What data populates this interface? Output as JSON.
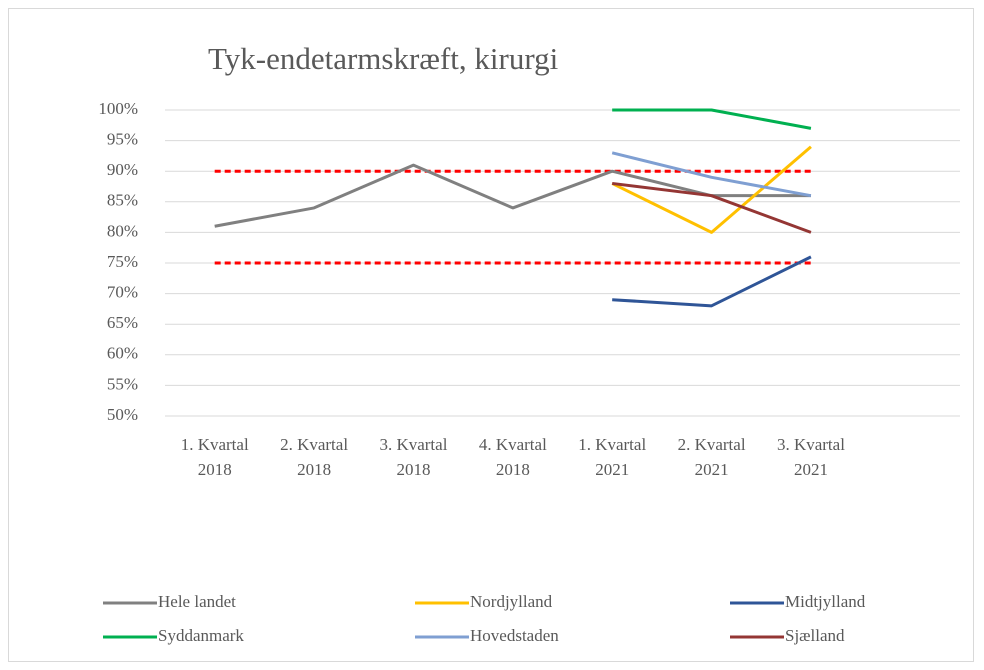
{
  "chart_data": {
    "type": "line",
    "title": "Tyk-endetarmskræft, kirurgi",
    "categories": [
      "1. Kvartal 2018",
      "2. Kvartal 2018",
      "3. Kvartal 2018",
      "4. Kvartal 2018",
      "1. Kvartal 2021",
      "2. Kvartal 2021",
      "3. Kvartal 2021",
      null
    ],
    "series": [
      {
        "name": "Hele landet",
        "color": "#808080",
        "values": [
          81,
          84,
          91,
          84,
          90,
          86,
          86,
          null
        ]
      },
      {
        "name": "Nordjylland",
        "color": "#ffc000",
        "values": [
          null,
          null,
          null,
          null,
          88,
          80,
          94,
          null
        ]
      },
      {
        "name": "Midtjylland",
        "color": "#2f5597",
        "values": [
          null,
          null,
          null,
          null,
          69,
          68,
          76,
          null
        ]
      },
      {
        "name": "Syddanmark",
        "color": "#00b050",
        "values": [
          null,
          null,
          null,
          null,
          100,
          100,
          97,
          null
        ]
      },
      {
        "name": "Hovedstaden",
        "color": "#7f9fd2",
        "values": [
          null,
          null,
          null,
          null,
          93,
          89,
          86,
          null
        ]
      },
      {
        "name": "Sjælland",
        "color": "#943634",
        "values": [
          null,
          null,
          null,
          null,
          88,
          86,
          80,
          null
        ]
      }
    ],
    "reference_lines": [
      {
        "color": "#ff0000",
        "dashed": true,
        "values": [
          90,
          90,
          90,
          90,
          90,
          90,
          90,
          null
        ]
      },
      {
        "color": "#ff0000",
        "dashed": true,
        "values": [
          75,
          75,
          75,
          75,
          75,
          75,
          75,
          null
        ]
      }
    ],
    "ylim": [
      50,
      100
    ],
    "yticks": [
      {
        "value": 50,
        "label": "50%"
      },
      {
        "value": 55,
        "label": "55%"
      },
      {
        "value": 60,
        "label": "60%"
      },
      {
        "value": 65,
        "label": "65%"
      },
      {
        "value": 70,
        "label": "70%"
      },
      {
        "value": 75,
        "label": "75%"
      },
      {
        "value": 80,
        "label": "80%"
      },
      {
        "value": 85,
        "label": "85%"
      },
      {
        "value": 90,
        "label": "90%"
      },
      {
        "value": 95,
        "label": "95%"
      },
      {
        "value": 100,
        "label": "100%"
      }
    ],
    "grid": true,
    "legend": "bottom"
  }
}
